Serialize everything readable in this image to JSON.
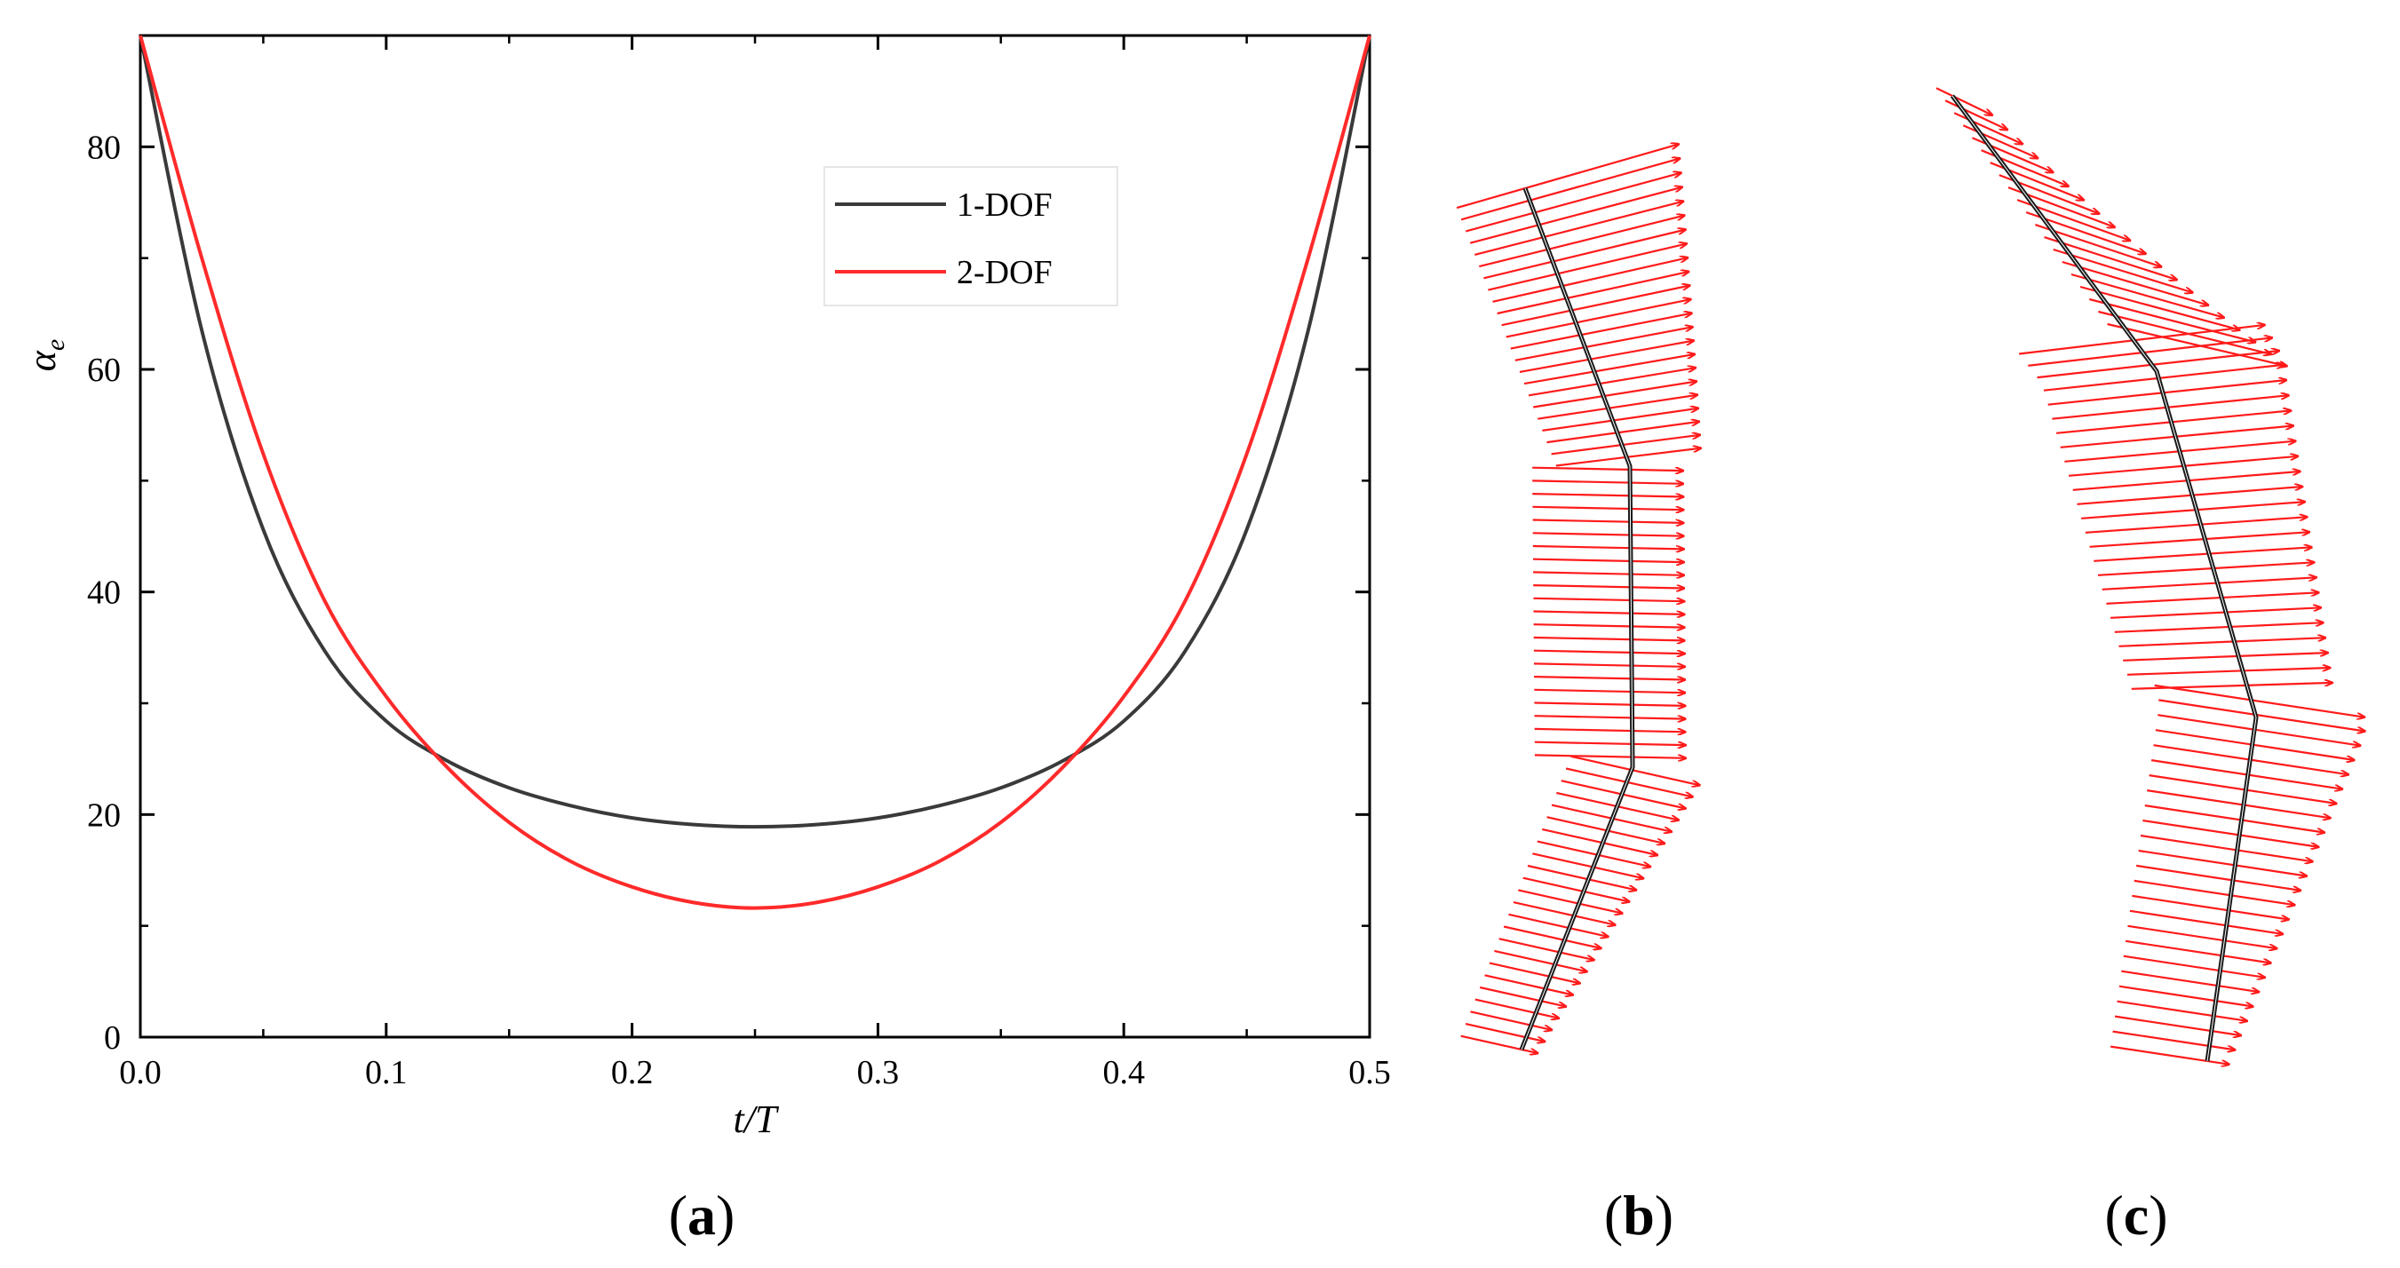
{
  "chart_data": {
    "type": "line",
    "panel_label": "a",
    "xlabel": "t/T",
    "ylabel": "α",
    "ylabel_sub": "e",
    "xlim": [
      0,
      0.5
    ],
    "ylim": [
      0,
      90
    ],
    "xticks": [
      "0.0",
      "0.1",
      "0.2",
      "0.3",
      "0.4",
      "0.5"
    ],
    "yticks": [
      "0",
      "20",
      "40",
      "60",
      "80"
    ],
    "legend_position": "upper-right",
    "series": [
      {
        "name": "1-DOF",
        "color": "#3a3a3a",
        "x": [
          0.0,
          0.025,
          0.05,
          0.075,
          0.1,
          0.125,
          0.15,
          0.175,
          0.2,
          0.225,
          0.25,
          0.275,
          0.3,
          0.325,
          0.35,
          0.375,
          0.4,
          0.425,
          0.45,
          0.475,
          0.5
        ],
        "y": [
          90,
          63.5,
          45.6,
          34.7,
          28.4,
          24.8,
          22.4,
          20.8,
          19.7,
          19.1,
          18.9,
          19.1,
          19.7,
          20.8,
          22.4,
          24.8,
          28.4,
          34.7,
          45.6,
          63.5,
          90
        ]
      },
      {
        "name": "2-DOF",
        "color": "#ff2a2a",
        "x": [
          0.0,
          0.025,
          0.05,
          0.075,
          0.1,
          0.125,
          0.15,
          0.175,
          0.2,
          0.225,
          0.25,
          0.275,
          0.3,
          0.325,
          0.35,
          0.375,
          0.4,
          0.425,
          0.45,
          0.475,
          0.5
        ],
        "y": [
          90,
          70.0,
          52.4,
          39.2,
          30.6,
          24.2,
          19.3,
          15.8,
          13.5,
          12.1,
          11.6,
          12.1,
          13.5,
          15.8,
          19.3,
          24.2,
          30.6,
          39.2,
          52.4,
          70.0,
          90
        ]
      }
    ]
  },
  "panels": {
    "b": {
      "label": "b"
    },
    "c": {
      "label": "c"
    }
  },
  "colors": {
    "arrow": "#ff1a1a",
    "body_line": "#1a1a1a"
  }
}
